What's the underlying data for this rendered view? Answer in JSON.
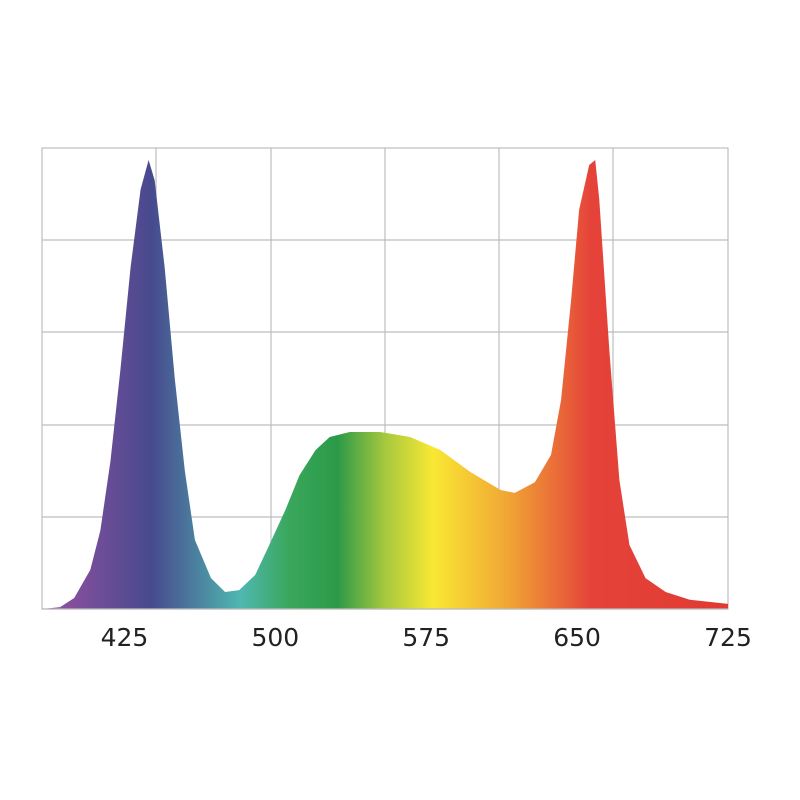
{
  "chart_data": {
    "type": "area",
    "x": [
      384,
      393,
      400,
      408,
      413,
      418,
      423,
      428,
      433,
      437,
      440,
      445,
      450,
      455,
      460,
      468,
      475,
      482,
      490,
      497,
      505,
      512,
      520,
      527,
      537,
      552,
      567,
      582,
      597,
      612,
      619,
      629,
      637,
      642,
      647,
      651,
      656,
      659,
      661,
      666,
      671,
      676,
      684,
      694,
      706,
      725
    ],
    "values": [
      0,
      0.4,
      2.4,
      8.5,
      17,
      32,
      52,
      74,
      91,
      97.4,
      93,
      74,
      50,
      30,
      15,
      6.7,
      3.7,
      4.1,
      7.4,
      13.9,
      21.5,
      29,
      34.5,
      37.3,
      38.4,
      38.4,
      37.3,
      34.5,
      29.7,
      25.8,
      25.2,
      27.5,
      33.4,
      45.3,
      67,
      86.6,
      96.3,
      97.4,
      88.9,
      56.2,
      28,
      13.9,
      6.7,
      3.7,
      2,
      1.1
    ],
    "xlim": [
      384,
      725
    ],
    "ylim": [
      0,
      100
    ],
    "xticks": [
      425,
      500,
      575,
      650,
      725
    ]
  }
}
